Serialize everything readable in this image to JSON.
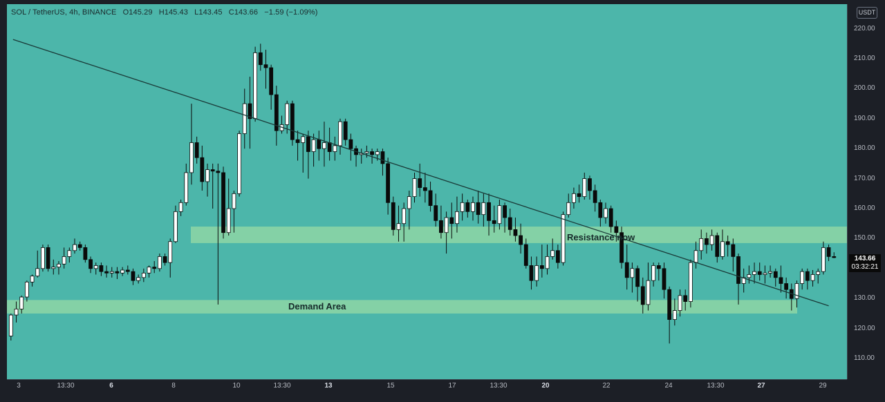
{
  "header": {
    "symbol": "SOL / TetherUS, 4h, BINANCE",
    "open": "O145.29",
    "high": "H145.43",
    "low": "L143.45",
    "close": "C143.66",
    "change": "−1.59 (−1.09%)"
  },
  "currency_button": "USDT",
  "last_price": {
    "price": "143.66",
    "countdown": "03:32:21"
  },
  "price_ticks": [
    "220.00",
    "210.00",
    "200.00",
    "190.00",
    "180.00",
    "170.00",
    "160.00",
    "150.00",
    "140.00",
    "130.00",
    "120.00",
    "110.00"
  ],
  "time_ticks": [
    {
      "label": "3",
      "bold": false
    },
    {
      "label": "13:30",
      "bold": false
    },
    {
      "label": "6",
      "bold": true
    },
    {
      "label": "8",
      "bold": false
    },
    {
      "label": "10",
      "bold": false
    },
    {
      "label": "13:30",
      "bold": false
    },
    {
      "label": "13",
      "bold": true
    },
    {
      "label": "15",
      "bold": false
    },
    {
      "label": "17",
      "bold": false
    },
    {
      "label": "13:30",
      "bold": false
    },
    {
      "label": "20",
      "bold": true
    },
    {
      "label": "22",
      "bold": false
    },
    {
      "label": "24",
      "bold": false
    },
    {
      "label": "13:30",
      "bold": false
    },
    {
      "label": "27",
      "bold": true
    },
    {
      "label": "29",
      "bold": false
    }
  ],
  "annotations": {
    "resistance_label": "Resistance now",
    "demand_label": "Demand Area"
  },
  "colors": {
    "background": "#4cb6aa",
    "up_candle": "#ffffff",
    "down_candle": "#0a0a0a",
    "zone": "#8ed6a6",
    "trendline": "#1a3a38"
  },
  "chart_data": {
    "type": "candlestick",
    "symbol": "SOL / TetherUS",
    "interval": "4h",
    "exchange": "BINANCE",
    "ylim": [
      104,
      225
    ],
    "zones": [
      {
        "name": "Resistance now",
        "from": 148.5,
        "to": 154
      },
      {
        "name": "Demand Area",
        "from": 125,
        "to": 129.5
      }
    ],
    "trendline": [
      {
        "bar": 0,
        "price": 215.5
      },
      {
        "bar": 148,
        "price": 131
      }
    ],
    "candles": [
      [
        117.5,
        124.5,
        116,
        125
      ],
      [
        124.5,
        126.5,
        122,
        129
      ],
      [
        126.5,
        130.5,
        125,
        131
      ],
      [
        130.5,
        135.5,
        129,
        136
      ],
      [
        135.5,
        137.5,
        134,
        138
      ],
      [
        137.5,
        140,
        137,
        146
      ],
      [
        140,
        147,
        139,
        148
      ],
      [
        147,
        140,
        139,
        148
      ],
      [
        140,
        140.5,
        138,
        143
      ],
      [
        140.5,
        141.5,
        138,
        142.5
      ],
      [
        141.5,
        144,
        140,
        147
      ],
      [
        144,
        146,
        142,
        147
      ],
      [
        146,
        148,
        145,
        150
      ],
      [
        148,
        147,
        146,
        149
      ],
      [
        147,
        143,
        142,
        148
      ],
      [
        143,
        140,
        138.5,
        144
      ],
      [
        140,
        141,
        138,
        142
      ],
      [
        141,
        139,
        137.5,
        142
      ],
      [
        139,
        138.5,
        137,
        141
      ],
      [
        138.5,
        139,
        137,
        140.5
      ],
      [
        139,
        138.5,
        136.5,
        140.5
      ],
      [
        138.5,
        139.5,
        137.5,
        140.5
      ],
      [
        139.5,
        139,
        138,
        141
      ],
      [
        139,
        136,
        134.5,
        140
      ],
      [
        136,
        137,
        135,
        138
      ],
      [
        137,
        138.5,
        135.5,
        140
      ],
      [
        138.5,
        140.5,
        137,
        141
      ],
      [
        140.5,
        140,
        138.5,
        142.5
      ],
      [
        140,
        144,
        139,
        145
      ],
      [
        144,
        142,
        141,
        145
      ],
      [
        142,
        149,
        137,
        150
      ],
      [
        149,
        159,
        148.5,
        161
      ],
      [
        159,
        162,
        157.5,
        163
      ],
      [
        162,
        172,
        161,
        175
      ],
      [
        172,
        182,
        168,
        195
      ],
      [
        182,
        177,
        175,
        184
      ],
      [
        177,
        169,
        166,
        181
      ],
      [
        169,
        173,
        164,
        175
      ],
      [
        173,
        172.5,
        160,
        175
      ],
      [
        172.5,
        172,
        128,
        175
      ],
      [
        172,
        152,
        150,
        174
      ],
      [
        152,
        160,
        151,
        170
      ],
      [
        160,
        165,
        152,
        166
      ],
      [
        165,
        185,
        164,
        186
      ],
      [
        185,
        195,
        180,
        200
      ],
      [
        195,
        190,
        180,
        204
      ],
      [
        190,
        212,
        189,
        214
      ],
      [
        212,
        208,
        206,
        215
      ],
      [
        208,
        207,
        200,
        213
      ],
      [
        207,
        198,
        193,
        208
      ],
      [
        198,
        186,
        181,
        201
      ],
      [
        186,
        188,
        185,
        191
      ],
      [
        188,
        195,
        185,
        196
      ],
      [
        195,
        183,
        181,
        196
      ],
      [
        183,
        182,
        176,
        186
      ],
      [
        182,
        184,
        172,
        185
      ],
      [
        184,
        179,
        170,
        186
      ],
      [
        179,
        183,
        174,
        185
      ],
      [
        183,
        180,
        176,
        186
      ],
      [
        180,
        182,
        174,
        189
      ],
      [
        182,
        179,
        176,
        187
      ],
      [
        179,
        181,
        176,
        184
      ],
      [
        181,
        189,
        178,
        190
      ],
      [
        189,
        183,
        181,
        190
      ],
      [
        183,
        180,
        176,
        185
      ],
      [
        180,
        178,
        174,
        181
      ],
      [
        178,
        178.5,
        175,
        180
      ],
      [
        178.5,
        179,
        177,
        181
      ],
      [
        179,
        178,
        175,
        180
      ],
      [
        178,
        179,
        176,
        180
      ],
      [
        179,
        175,
        171,
        180
      ],
      [
        175,
        162,
        158,
        177
      ],
      [
        162,
        153,
        151,
        164
      ],
      [
        153,
        155,
        149,
        161
      ],
      [
        155,
        160,
        149,
        162
      ],
      [
        160,
        164,
        153,
        166
      ],
      [
        164,
        170,
        162,
        172
      ],
      [
        170,
        167,
        164,
        175
      ],
      [
        167,
        166,
        162,
        172
      ],
      [
        166,
        161,
        159,
        169
      ],
      [
        161,
        156,
        154,
        165
      ],
      [
        156,
        152,
        150,
        161
      ],
      [
        152,
        157,
        145,
        159
      ],
      [
        157,
        155,
        150,
        162
      ],
      [
        155,
        159,
        152,
        164
      ],
      [
        159,
        162,
        156,
        165
      ],
      [
        162,
        159,
        157,
        163
      ],
      [
        159,
        162,
        156,
        164
      ],
      [
        162,
        158,
        155,
        166
      ],
      [
        158,
        162,
        154,
        165
      ],
      [
        162,
        156,
        151,
        165
      ],
      [
        156,
        155,
        152,
        161
      ],
      [
        155,
        161,
        153,
        163
      ],
      [
        161,
        157,
        152,
        162
      ],
      [
        157,
        153,
        151,
        160
      ],
      [
        153,
        151,
        149,
        157
      ],
      [
        151,
        148,
        145,
        155
      ],
      [
        148,
        141,
        140,
        150
      ],
      [
        141,
        136,
        133,
        144
      ],
      [
        136,
        141,
        134,
        144
      ],
      [
        141,
        140,
        137,
        148
      ],
      [
        140,
        144,
        138,
        148
      ],
      [
        144,
        146,
        143,
        150
      ],
      [
        146,
        142,
        140,
        148
      ],
      [
        142,
        158,
        141,
        159
      ],
      [
        158,
        162,
        157,
        165
      ],
      [
        162,
        165,
        160,
        167
      ],
      [
        165,
        164,
        162,
        168
      ],
      [
        164,
        170,
        163,
        172
      ],
      [
        170,
        166,
        163,
        171
      ],
      [
        166,
        162,
        159,
        168
      ],
      [
        162,
        157,
        154,
        163
      ],
      [
        157,
        160,
        155,
        162
      ],
      [
        160,
        154,
        152,
        161
      ],
      [
        154,
        152,
        149,
        156
      ],
      [
        152,
        142,
        140,
        154
      ],
      [
        142,
        137,
        133,
        148
      ],
      [
        137,
        140,
        132,
        142
      ],
      [
        140,
        134,
        129,
        141
      ],
      [
        134,
        128,
        125,
        137
      ],
      [
        128,
        136,
        126,
        142
      ],
      [
        136,
        141,
        134,
        142
      ],
      [
        141,
        140,
        136,
        142
      ],
      [
        140,
        133,
        130,
        142
      ],
      [
        133,
        123,
        115,
        134
      ],
      [
        123,
        126,
        121,
        130
      ],
      [
        126,
        131,
        124,
        133
      ],
      [
        131,
        129,
        126,
        133
      ],
      [
        129,
        142,
        127,
        143
      ],
      [
        142,
        146,
        140,
        149
      ],
      [
        146,
        150,
        143,
        153
      ],
      [
        150,
        148,
        145,
        152
      ],
      [
        148,
        151,
        146,
        153
      ],
      [
        151,
        144,
        142,
        152
      ],
      [
        144,
        149,
        143,
        153
      ],
      [
        149,
        148,
        144,
        151
      ],
      [
        148,
        144,
        139,
        150
      ],
      [
        144,
        135,
        128,
        145
      ],
      [
        135,
        137,
        132,
        140
      ],
      [
        137,
        138,
        135,
        141
      ],
      [
        138,
        139,
        135,
        142
      ],
      [
        139,
        138,
        136,
        142
      ],
      [
        138,
        138.5,
        135,
        141
      ],
      [
        138.5,
        139,
        137,
        141
      ],
      [
        139,
        137,
        134,
        140
      ],
      [
        137,
        135,
        132,
        141
      ],
      [
        135,
        133,
        130,
        137
      ],
      [
        133,
        130,
        126,
        135
      ],
      [
        130,
        135,
        127,
        136
      ],
      [
        135,
        139,
        133,
        140
      ],
      [
        139,
        136,
        133,
        140
      ],
      [
        136,
        138,
        134,
        139.5
      ],
      [
        138,
        139,
        135,
        140
      ],
      [
        139,
        147,
        138,
        149
      ],
      [
        147,
        144,
        142.5,
        148
      ],
      [
        144,
        143.66,
        143.45,
        145.43
      ]
    ]
  }
}
